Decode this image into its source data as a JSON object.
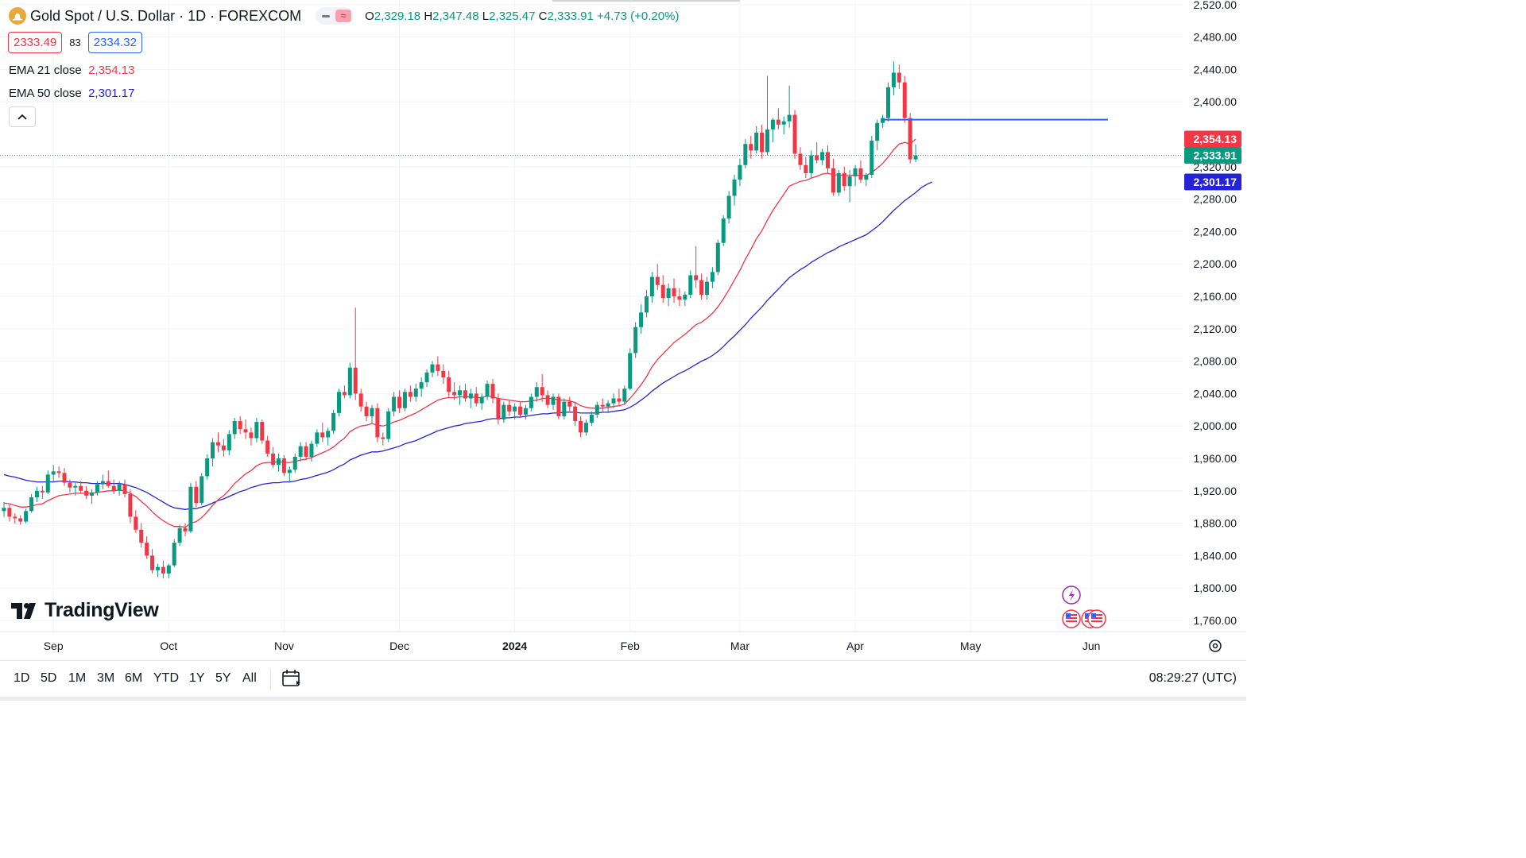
{
  "header": {
    "symbol_title": "Gold Spot / U.S. Dollar · 1D · FOREXCOM",
    "symbol_icon": "gold-coin-icon",
    "open_label": "O",
    "open": "2,329.18",
    "high_label": "H",
    "high": "2,347.48",
    "low_label": "L",
    "low": "2,325.47",
    "close_label": "C",
    "close": "2,333.91",
    "change": "+4.73 (+0.20%)"
  },
  "quote": {
    "bid": "2333.49",
    "spread": "83",
    "ask": "2334.32"
  },
  "indicators": [
    {
      "label": "EMA 21 close",
      "value": "2,354.13",
      "color": "#f23645"
    },
    {
      "label": "EMA 50 close",
      "value": "2,301.17",
      "color": "#2424d6"
    }
  ],
  "brand": "TradingView",
  "timeframes": [
    "1D",
    "5D",
    "1M",
    "3M",
    "6M",
    "YTD",
    "1Y",
    "5Y",
    "All"
  ],
  "clock": "08:29:27 (UTC)",
  "colors": {
    "up": "#089981",
    "down": "#f23645",
    "ema21": "#f23645",
    "ema50": "#2424d6",
    "resistance": "#2962ff",
    "accent": "#2962ff"
  },
  "chart_data": {
    "type": "candlestick",
    "title": "Gold Spot / U.S. Dollar · 1D · FOREXCOM",
    "ylim": [
      1740,
      2520
    ],
    "y_ticks": [
      1760,
      1800,
      1840,
      1880,
      1920,
      1960,
      2000,
      2040,
      2080,
      2120,
      2160,
      2200,
      2240,
      2280,
      2320,
      2400,
      2440,
      2480,
      2520
    ],
    "y_tick_labels": [
      "1,760.00",
      "1,800.00",
      "1,840.00",
      "1,880.00",
      "1,920.00",
      "1,960.00",
      "2,000.00",
      "2,040.00",
      "2,080.00",
      "2,120.00",
      "2,160.00",
      "2,200.00",
      "2,240.00",
      "2,280.00",
      "2,320.00",
      "2,400.00",
      "2,440.00",
      "2,480.00",
      "2,520.00"
    ],
    "x_labels": [
      "Sep",
      "Oct",
      "Nov",
      "Dec",
      "2024",
      "Feb",
      "Mar",
      "Apr",
      "May",
      "Jun"
    ],
    "x_label_bar_index": [
      9,
      30,
      51,
      72,
      93,
      114,
      134,
      155,
      176,
      198
    ],
    "price_labels": [
      {
        "name": "ema21",
        "text": "2,354.13",
        "value": 2354.13,
        "color": "#f23645"
      },
      {
        "name": "last",
        "text": "2,333.91",
        "value": 2333.91,
        "color": "#089981"
      },
      {
        "name": "ema50",
        "text": "2,301.17",
        "value": 2301.17,
        "color": "#2424d6"
      }
    ],
    "resistance": {
      "value": 2378,
      "from_index": 160,
      "to_index": 201
    },
    "candles": [
      [
        1895,
        1906,
        1888,
        1899
      ],
      [
        1899,
        1903,
        1882,
        1888
      ],
      [
        1888,
        1892,
        1880,
        1886
      ],
      [
        1886,
        1890,
        1878,
        1882
      ],
      [
        1882,
        1898,
        1880,
        1895
      ],
      [
        1895,
        1916,
        1893,
        1912
      ],
      [
        1912,
        1925,
        1906,
        1920
      ],
      [
        1920,
        1926,
        1910,
        1918
      ],
      [
        1918,
        1945,
        1916,
        1940
      ],
      [
        1940,
        1952,
        1932,
        1944
      ],
      [
        1944,
        1950,
        1936,
        1942
      ],
      [
        1942,
        1948,
        1926,
        1930
      ],
      [
        1930,
        1934,
        1918,
        1924
      ],
      [
        1924,
        1930,
        1914,
        1926
      ],
      [
        1926,
        1932,
        1916,
        1920
      ],
      [
        1920,
        1926,
        1910,
        1914
      ],
      [
        1914,
        1922,
        1904,
        1918
      ],
      [
        1918,
        1932,
        1914,
        1928
      ],
      [
        1928,
        1940,
        1922,
        1932
      ],
      [
        1932,
        1945,
        1924,
        1926
      ],
      [
        1926,
        1934,
        1916,
        1920
      ],
      [
        1920,
        1932,
        1914,
        1928
      ],
      [
        1928,
        1934,
        1912,
        1916
      ],
      [
        1916,
        1922,
        1880,
        1888
      ],
      [
        1888,
        1896,
        1868,
        1872
      ],
      [
        1872,
        1880,
        1850,
        1856
      ],
      [
        1856,
        1864,
        1836,
        1840
      ],
      [
        1840,
        1848,
        1818,
        1822
      ],
      [
        1822,
        1830,
        1814,
        1826
      ],
      [
        1826,
        1834,
        1812,
        1818
      ],
      [
        1818,
        1830,
        1812,
        1828
      ],
      [
        1828,
        1860,
        1826,
        1856
      ],
      [
        1856,
        1878,
        1852,
        1874
      ],
      [
        1874,
        1880,
        1864,
        1870
      ],
      [
        1870,
        1930,
        1868,
        1925
      ],
      [
        1925,
        1932,
        1900,
        1905
      ],
      [
        1905,
        1942,
        1902,
        1938
      ],
      [
        1938,
        1965,
        1934,
        1960
      ],
      [
        1960,
        1985,
        1950,
        1980
      ],
      [
        1980,
        1992,
        1968,
        1976
      ],
      [
        1976,
        1984,
        1962,
        1970
      ],
      [
        1970,
        1995,
        1964,
        1990
      ],
      [
        1990,
        2010,
        1984,
        2006
      ],
      [
        2006,
        2012,
        1990,
        1996
      ],
      [
        1996,
        2008,
        1984,
        1992
      ],
      [
        1992,
        1998,
        1976,
        1985
      ],
      [
        1985,
        2010,
        1980,
        2005
      ],
      [
        2005,
        2008,
        1978,
        1982
      ],
      [
        1982,
        1988,
        1962,
        1966
      ],
      [
        1966,
        1974,
        1948,
        1952
      ],
      [
        1952,
        1966,
        1944,
        1960
      ],
      [
        1960,
        1964,
        1938,
        1942
      ],
      [
        1942,
        1950,
        1930,
        1946
      ],
      [
        1946,
        1966,
        1942,
        1962
      ],
      [
        1962,
        1980,
        1956,
        1975
      ],
      [
        1975,
        1980,
        1958,
        1962
      ],
      [
        1962,
        1982,
        1956,
        1978
      ],
      [
        1978,
        1996,
        1974,
        1992
      ],
      [
        1992,
        2004,
        1980,
        1986
      ],
      [
        1986,
        1998,
        1976,
        1994
      ],
      [
        1994,
        2020,
        1990,
        2016
      ],
      [
        2016,
        2046,
        2012,
        2042
      ],
      [
        2042,
        2050,
        2034,
        2038
      ],
      [
        2038,
        2078,
        2034,
        2072
      ],
      [
        2072,
        2146,
        2032,
        2040
      ],
      [
        2040,
        2046,
        2018,
        2024
      ],
      [
        2024,
        2030,
        2006,
        2012
      ],
      [
        2012,
        2026,
        2004,
        2022
      ],
      [
        2022,
        2028,
        1980,
        1986
      ],
      [
        1986,
        1992,
        1976,
        1984
      ],
      [
        1984,
        2022,
        1980,
        2018
      ],
      [
        2018,
        2042,
        2012,
        2036
      ],
      [
        2036,
        2044,
        2016,
        2022
      ],
      [
        2022,
        2046,
        2018,
        2042
      ],
      [
        2042,
        2050,
        2030,
        2036
      ],
      [
        2036,
        2052,
        2030,
        2046
      ],
      [
        2046,
        2060,
        2036,
        2054
      ],
      [
        2054,
        2070,
        2048,
        2066
      ],
      [
        2066,
        2080,
        2060,
        2076
      ],
      [
        2076,
        2086,
        2062,
        2068
      ],
      [
        2068,
        2076,
        2052,
        2060
      ],
      [
        2060,
        2068,
        2036,
        2042
      ],
      [
        2042,
        2054,
        2032,
        2038
      ],
      [
        2038,
        2050,
        2026,
        2044
      ],
      [
        2044,
        2052,
        2030,
        2034
      ],
      [
        2034,
        2046,
        2022,
        2040
      ],
      [
        2040,
        2048,
        2024,
        2028
      ],
      [
        2028,
        2040,
        2020,
        2036
      ],
      [
        2036,
        2056,
        2032,
        2052
      ],
      [
        2052,
        2058,
        2028,
        2034
      ],
      [
        2034,
        2040,
        2002,
        2008
      ],
      [
        2008,
        2030,
        2004,
        2026
      ],
      [
        2026,
        2032,
        2012,
        2018
      ],
      [
        2018,
        2028,
        2008,
        2024
      ],
      [
        2024,
        2030,
        2010,
        2014
      ],
      [
        2014,
        2026,
        2008,
        2022
      ],
      [
        2022,
        2040,
        2018,
        2036
      ],
      [
        2036,
        2054,
        2030,
        2048
      ],
      [
        2048,
        2064,
        2030,
        2038
      ],
      [
        2038,
        2044,
        2022,
        2026
      ],
      [
        2026,
        2040,
        2020,
        2036
      ],
      [
        2036,
        2040,
        2008,
        2012
      ],
      [
        2012,
        2034,
        2008,
        2030
      ],
      [
        2030,
        2036,
        2018,
        2024
      ],
      [
        2024,
        2030,
        2000,
        2006
      ],
      [
        2006,
        2012,
        1986,
        1992
      ],
      [
        1992,
        2008,
        1988,
        2004
      ],
      [
        2004,
        2018,
        2000,
        2014
      ],
      [
        2014,
        2030,
        2010,
        2026
      ],
      [
        2026,
        2034,
        2018,
        2024
      ],
      [
        2024,
        2032,
        2016,
        2028
      ],
      [
        2028,
        2040,
        2022,
        2034
      ],
      [
        2034,
        2046,
        2026,
        2030
      ],
      [
        2030,
        2050,
        2026,
        2046
      ],
      [
        2046,
        2096,
        2044,
        2090
      ],
      [
        2090,
        2128,
        2084,
        2122
      ],
      [
        2122,
        2150,
        2114,
        2140
      ],
      [
        2140,
        2168,
        2134,
        2160
      ],
      [
        2160,
        2190,
        2152,
        2184
      ],
      [
        2184,
        2200,
        2168,
        2174
      ],
      [
        2174,
        2186,
        2152,
        2158
      ],
      [
        2158,
        2176,
        2148,
        2170
      ],
      [
        2170,
        2182,
        2152,
        2160
      ],
      [
        2160,
        2170,
        2148,
        2156
      ],
      [
        2156,
        2166,
        2148,
        2162
      ],
      [
        2162,
        2192,
        2158,
        2186
      ],
      [
        2186,
        2222,
        2170,
        2180
      ],
      [
        2180,
        2188,
        2156,
        2162
      ],
      [
        2162,
        2184,
        2156,
        2178
      ],
      [
        2178,
        2196,
        2170,
        2190
      ],
      [
        2190,
        2230,
        2186,
        2226
      ],
      [
        2226,
        2260,
        2222,
        2256
      ],
      [
        2256,
        2290,
        2250,
        2284
      ],
      [
        2284,
        2310,
        2272,
        2304
      ],
      [
        2304,
        2330,
        2296,
        2322
      ],
      [
        2322,
        2354,
        2318,
        2348
      ],
      [
        2348,
        2358,
        2330,
        2340
      ],
      [
        2340,
        2370,
        2336,
        2362
      ],
      [
        2362,
        2372,
        2330,
        2338
      ],
      [
        2338,
        2432,
        2334,
        2366
      ],
      [
        2366,
        2380,
        2350,
        2378
      ],
      [
        2378,
        2392,
        2366,
        2372
      ],
      [
        2372,
        2382,
        2360,
        2376
      ],
      [
        2376,
        2420,
        2368,
        2384
      ],
      [
        2384,
        2390,
        2330,
        2336
      ],
      [
        2336,
        2344,
        2316,
        2322
      ],
      [
        2322,
        2332,
        2306,
        2312
      ],
      [
        2312,
        2340,
        2306,
        2334
      ],
      [
        2334,
        2350,
        2324,
        2328
      ],
      [
        2328,
        2342,
        2322,
        2338
      ],
      [
        2338,
        2346,
        2312,
        2318
      ],
      [
        2318,
        2330,
        2284,
        2288
      ],
      [
        2288,
        2316,
        2284,
        2312
      ],
      [
        2312,
        2320,
        2290,
        2296
      ],
      [
        2296,
        2316,
        2276,
        2308
      ],
      [
        2308,
        2322,
        2296,
        2318
      ],
      [
        2318,
        2328,
        2300,
        2304
      ],
      [
        2304,
        2312,
        2296,
        2310
      ],
      [
        2310,
        2358,
        2306,
        2352
      ],
      [
        2352,
        2378,
        2340,
        2374
      ],
      [
        2374,
        2384,
        2368,
        2380
      ],
      [
        2380,
        2424,
        2376,
        2418
      ],
      [
        2418,
        2450,
        2408,
        2436
      ],
      [
        2436,
        2446,
        2416,
        2424
      ],
      [
        2424,
        2432,
        2374,
        2380
      ],
      [
        2380,
        2386,
        2324,
        2329
      ],
      [
        2329,
        2347.48,
        2325.47,
        2333.91
      ]
    ],
    "ema21": [
      1905,
      1904,
      1902,
      1900,
      1900,
      1901,
      1903,
      1904,
      1908,
      1911,
      1914,
      1915,
      1916,
      1917,
      1917,
      1917,
      1917,
      1918,
      1919,
      1920,
      1920,
      1921,
      1920,
      1917,
      1913,
      1907,
      1901,
      1894,
      1888,
      1883,
      1879,
      1876,
      1876,
      1875,
      1880,
      1882,
      1887,
      1894,
      1902,
      1909,
      1914,
      1921,
      1929,
      1935,
      1941,
      1945,
      1951,
      1954,
      1955,
      1955,
      1956,
      1955,
      1955,
      1956,
      1958,
      1959,
      1961,
      1964,
      1967,
      1970,
      1974,
      1980,
      1985,
      1993,
      1997,
      2000,
      2001,
      2003,
      2001,
      2000,
      2002,
      2005,
      2007,
      2010,
      2013,
      2016,
      2020,
      2024,
      2028,
      2032,
      2034,
      2035,
      2035,
      2036,
      2036,
      2036,
      2035,
      2035,
      2037,
      2036,
      2034,
      2033,
      2032,
      2031,
      2030,
      2030,
      2031,
      2032,
      2034,
      2034,
      2034,
      2032,
      2032,
      2031,
      2029,
      2025,
      2023,
      2022,
      2022,
      2022,
      2023,
      2024,
      2025,
      2027,
      2034,
      2042,
      2051,
      2061,
      2073,
      2082,
      2089,
      2096,
      2103,
      2108,
      2113,
      2119,
      2125,
      2128,
      2133,
      2139,
      2147,
      2157,
      2168,
      2180,
      2192,
      2206,
      2218,
      2231,
      2241,
      2254,
      2266,
      2276,
      2286,
      2296,
      2299,
      2302,
      2303,
      2306,
      2308,
      2311,
      2312,
      2310,
      2310,
      2309,
      2309,
      2310,
      2309,
      2309,
      2313,
      2318,
      2324,
      2332,
      2341,
      2348,
      2350,
      2348,
      2354.13
    ],
    "ema50": [
      1940,
      1938,
      1937,
      1935,
      1933,
      1932,
      1931,
      1931,
      1931,
      1931,
      1932,
      1932,
      1931,
      1931,
      1930,
      1930,
      1929,
      1929,
      1929,
      1929,
      1929,
      1929,
      1928,
      1926,
      1924,
      1921,
      1918,
      1914,
      1910,
      1906,
      1902,
      1899,
      1898,
      1897,
      1898,
      1898,
      1900,
      1902,
      1905,
      1908,
      1910,
      1913,
      1916,
      1919,
      1921,
      1924,
      1926,
      1928,
      1929,
      1930,
      1930,
      1931,
      1931,
      1932,
      1934,
      1935,
      1937,
      1939,
      1941,
      1943,
      1946,
      1950,
      1953,
      1958,
      1961,
      1964,
      1966,
      1968,
      1968,
      1969,
      1971,
      1973,
      1975,
      1978,
      1980,
      1982,
      1985,
      1988,
      1991,
      1994,
      1996,
      1998,
      2000,
      2001,
      2003,
      2004,
      2005,
      2006,
      2008,
      2009,
      2009,
      2010,
      2010,
      2011,
      2011,
      2012,
      2013,
      2014,
      2015,
      2015,
      2016,
      2016,
      2017,
      2017,
      2017,
      2016,
      2016,
      2016,
      2016,
      2017,
      2017,
      2018,
      2019,
      2020,
      2023,
      2027,
      2032,
      2037,
      2043,
      2048,
      2053,
      2057,
      2061,
      2065,
      2068,
      2072,
      2076,
      2080,
      2083,
      2087,
      2092,
      2098,
      2105,
      2111,
      2118,
      2125,
      2133,
      2140,
      2147,
      2155,
      2162,
      2169,
      2176,
      2183,
      2188,
      2193,
      2197,
      2202,
      2206,
      2210,
      2214,
      2217,
      2221,
      2224,
      2227,
      2230,
      2233,
      2236,
      2241,
      2246,
      2252,
      2259,
      2266,
      2272,
      2278,
      2283,
      2288,
      2294,
      2298,
      2301.17
    ]
  }
}
